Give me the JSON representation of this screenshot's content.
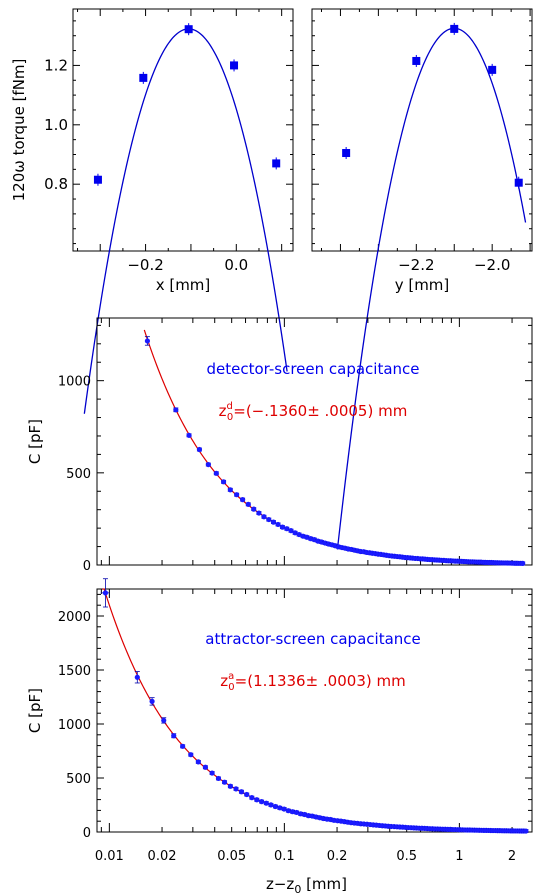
{
  "chart_data": [
    {
      "type": "scatter",
      "panel": "top-left",
      "xlabel": "x [mm]",
      "ylabel": "120ω torque [fNm]",
      "xlim": [
        -0.36,
        0.125
      ],
      "ylim": [
        0.575,
        1.39
      ],
      "xticks": [
        -0.2,
        0.0
      ],
      "xtick_labels": [
        "−0.2",
        "0.0"
      ],
      "yticks": [
        0.8,
        1.0,
        1.2
      ],
      "ytick_labels": [
        "0.8",
        "1.0",
        "1.2"
      ],
      "points": {
        "x": [
          -0.305,
          -0.205,
          -0.105,
          -0.005,
          0.088
        ],
        "y": [
          0.815,
          1.158,
          1.322,
          1.2,
          0.87
        ]
      },
      "fit": {
        "type": "parabola",
        "vertex_x": -0.105,
        "peak_y": 1.323,
        "curvature": -24.5,
        "x_range": [
          -0.335,
          0.112
        ]
      },
      "colors": {
        "points": "#0000ee",
        "fit": "#0000cc"
      }
    },
    {
      "type": "scatter",
      "panel": "top-right",
      "xlabel": "y [mm]",
      "xlim": [
        -2.475,
        -1.895
      ],
      "ylim": [
        0.575,
        1.39
      ],
      "xticks": [
        -2.2,
        -2.0
      ],
      "xtick_labels": [
        "−2.2",
        "−2.0"
      ],
      "yticks": [
        0.8,
        1.0,
        1.2
      ],
      "points": {
        "x": [
          -2.385,
          -2.2,
          -2.1,
          -2.0,
          -1.93
        ],
        "y": [
          0.905,
          1.215,
          1.323,
          1.185,
          0.805
        ]
      },
      "fit": {
        "type": "parabola",
        "vertex_x": -2.1,
        "peak_y": 1.325,
        "curvature": -18.5,
        "x_range": [
          -2.408,
          -1.912
        ]
      },
      "colors": {
        "points": "#0000ee",
        "fit": "#0000cc"
      }
    },
    {
      "type": "scatter",
      "panel": "middle",
      "scale_x": "log",
      "xlim": [
        0.0085,
        2.6
      ],
      "ylim": [
        0,
        1340
      ],
      "ylabel": "C [pF]",
      "yticks": [
        0,
        500,
        1000
      ],
      "ytick_labels": [
        "0",
        "500",
        "1000"
      ],
      "annotation_title": "detector-screen capacitance",
      "annotation_fit": {
        "prefix": "z",
        "sub": "0",
        "sup": "d",
        "rest": "=(−.1360± .0005) mm"
      },
      "model": {
        "numerator": 20.2,
        "offset": 0.002
      },
      "points_x_range": [
        0.0165,
        2.3
      ],
      "n_points": 110,
      "error_bars": true,
      "colors": {
        "points": "#1a1aff",
        "errors": "#0000aa",
        "fit": "#dd0000",
        "annotation_title": "#0000ee",
        "annotation_fit": "#dd0000"
      }
    },
    {
      "type": "scatter",
      "panel": "bottom",
      "scale_x": "log",
      "xlim": [
        0.0085,
        2.6
      ],
      "ylim": [
        0,
        2250
      ],
      "xlabel": "z−z",
      "xlabel_sub": "0",
      "xlabel_unit": " [mm]",
      "ylabel": "C [pF]",
      "yticks": [
        0,
        500,
        1000,
        1500,
        2000
      ],
      "ytick_labels": [
        "0",
        "500",
        "1000",
        "1500",
        "2000"
      ],
      "xticks": [
        0.01,
        0.02,
        0.05,
        0.1,
        0.2,
        0.5,
        1,
        2
      ],
      "xtick_labels": [
        "0.01",
        "0.02",
        "0.05",
        "0.1",
        "0.2",
        "0.5",
        "1",
        "2"
      ],
      "annotation_title": "attractor-screen capacitance",
      "annotation_fit": {
        "prefix": "z",
        "sub": "0",
        "sup": "a",
        "rest": "=(1.1336± .0003) mm"
      },
      "model": {
        "numerator": 21.0,
        "offset": 0.0003
      },
      "points_x_range": [
        0.0095,
        2.4
      ],
      "n_points": 110,
      "error_bars": true,
      "colors": {
        "points": "#1a1aff",
        "errors": "#0000aa",
        "fit": "#dd0000",
        "annotation_title": "#0000ee",
        "annotation_fit": "#dd0000"
      }
    }
  ]
}
